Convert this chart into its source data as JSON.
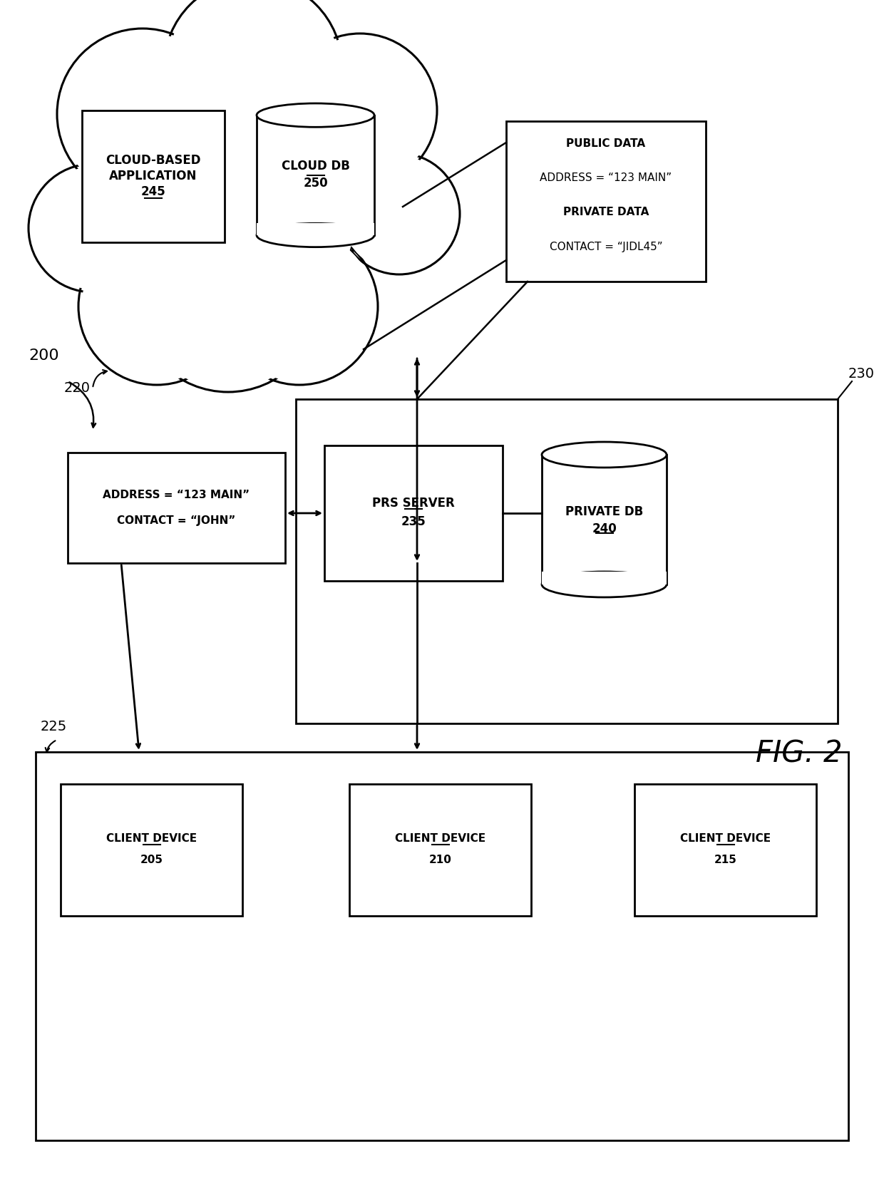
{
  "bg_color": "#ffffff",
  "cloud_app_label_lines": [
    "CLOUD-BASED",
    "APPLICATION"
  ],
  "cloud_app_num": "245",
  "cloud_db_label": "CLOUD DB",
  "cloud_db_num": "250",
  "prs_server_label": "PRS SERVER",
  "prs_server_num": "235",
  "private_db_label": "PRIVATE DB",
  "private_db_num": "240",
  "client_device_1_label": "CLIENT DEVICE",
  "client_device_1_num": "205",
  "client_device_2_label": "CLIENT DEVICE",
  "client_device_2_num": "210",
  "client_device_3_label": "CLIENT DEVICE",
  "client_device_3_num": "215",
  "pub_line1": "PUBLIC DATA",
  "pub_line2": "ADDRESS = “123 MAIN”",
  "pub_line3": "PRIVATE DATA",
  "pub_line4": "CONTACT = “JIDL45”",
  "addr_line1": "ADDRESS = “123 MAIN”",
  "addr_line2": "CONTACT = “JOHN”",
  "label_200": "200",
  "label_220": "220",
  "label_225": "225",
  "label_230": "230",
  "fig_label": "FIG. 2"
}
